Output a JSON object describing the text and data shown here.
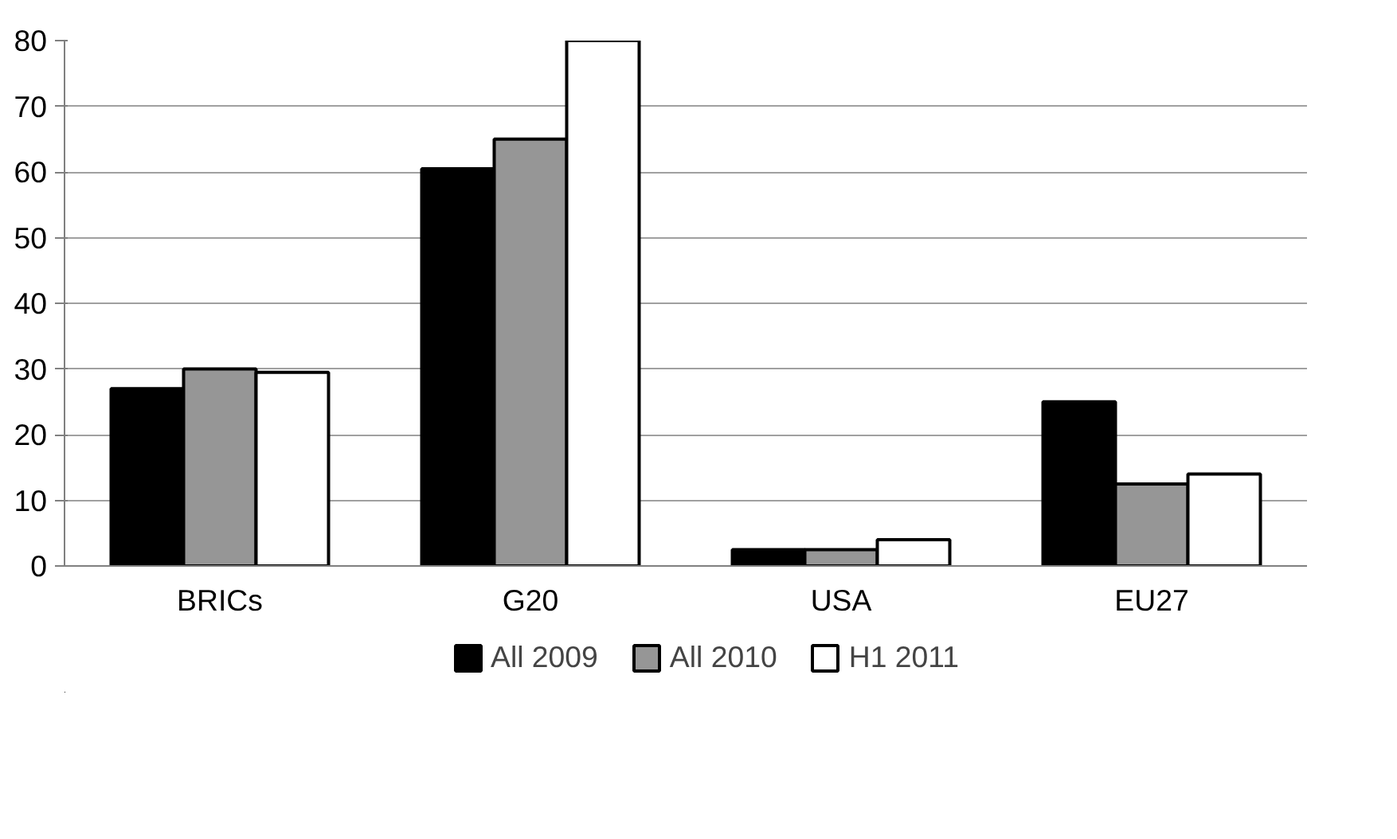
{
  "chart_data": {
    "type": "bar",
    "categories": [
      "BRICs",
      "G20",
      "USA",
      "EU27"
    ],
    "series": [
      {
        "name": "All 2009",
        "color": "#000000",
        "values": [
          27,
          60.5,
          2.5,
          25
        ]
      },
      {
        "name": "All 2010",
        "color": "#969696",
        "values": [
          30,
          65,
          2.5,
          12.5
        ]
      },
      {
        "name": "H1 2011",
        "color": "#ffffff",
        "values": [
          29.5,
          80,
          4,
          14
        ]
      }
    ],
    "ylim": [
      0,
      80
    ],
    "yticks": [
      0,
      10,
      20,
      30,
      40,
      50,
      60,
      70,
      80
    ],
    "grid": "y",
    "legend": "bottom"
  }
}
